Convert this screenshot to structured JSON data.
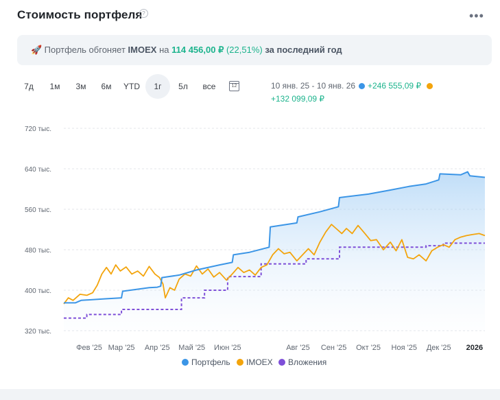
{
  "title": "Стоимость портфеля",
  "help_icon": "?",
  "more_icon": "•••",
  "banner": {
    "emoji": "🚀",
    "text1": "Портфель обгоняет",
    "index": "IMOEX",
    "text2": "на",
    "amount": "114 456,00 ₽",
    "percent": "(22,51%)",
    "text3": "за последний год"
  },
  "ranges": [
    "7д",
    "1м",
    "3м",
    "6м",
    "YTD",
    "1г",
    "5л",
    "все"
  ],
  "active_range": "1г",
  "calendar_icon": "12",
  "period": "10 янв. 25 - 10 янв. 26",
  "portfolio_change": "+246 555,09 ₽",
  "imoex_change": "+132 099,09 ₽",
  "colors": {
    "portfolio": "#3b95e6",
    "imoex": "#f3a40c",
    "invest": "#7e4fd8",
    "accent_green": "#1bb38c"
  },
  "chart_data": {
    "type": "line",
    "y_ticks": [
      "320 тыс.",
      "400 тыс.",
      "480 тыс.",
      "560 тыс.",
      "640 тыс.",
      "720 тыс."
    ],
    "y_tick_values": [
      320000,
      400000,
      480000,
      560000,
      640000,
      720000
    ],
    "ylim": [
      320000,
      720000
    ],
    "x_ticks": [
      "Фев '25",
      "Мар '25",
      "Апр '25",
      "Май '25",
      "Июн '25",
      "Авг '25",
      "Сен '25",
      "Окт '25",
      "Ноя '25",
      "Дек '25",
      "2026"
    ],
    "x_tick_dates": [
      "2025-02-01",
      "2025-03-01",
      "2025-04-01",
      "2025-05-01",
      "2025-06-01",
      "2025-08-01",
      "2025-09-01",
      "2025-10-01",
      "2025-11-01",
      "2025-12-01",
      "2026-01-01"
    ],
    "x_range": [
      "2025-01-10",
      "2026-01-10"
    ],
    "grid": true,
    "legend_position": "bottom",
    "series": [
      {
        "name": "Портфель",
        "type": "area",
        "points": [
          [
            "2025-01-10",
            375000
          ],
          [
            "2025-01-20",
            375000
          ],
          [
            "2025-01-25",
            380000
          ],
          [
            "2025-02-15",
            383000
          ],
          [
            "2025-03-01",
            385000
          ],
          [
            "2025-03-02",
            398000
          ],
          [
            "2025-03-25",
            405000
          ],
          [
            "2025-04-01",
            406000
          ],
          [
            "2025-04-04",
            408000
          ],
          [
            "2025-04-05",
            425000
          ],
          [
            "2025-04-20",
            430000
          ],
          [
            "2025-05-05",
            440000
          ],
          [
            "2025-05-25",
            450000
          ],
          [
            "2025-06-05",
            455000
          ],
          [
            "2025-06-06",
            470000
          ],
          [
            "2025-06-20",
            475000
          ],
          [
            "2025-07-07",
            485000
          ],
          [
            "2025-07-08",
            525000
          ],
          [
            "2025-07-31",
            533000
          ],
          [
            "2025-08-01",
            545000
          ],
          [
            "2025-08-20",
            555000
          ],
          [
            "2025-09-05",
            565000
          ],
          [
            "2025-09-06",
            583000
          ],
          [
            "2025-10-01",
            590000
          ],
          [
            "2025-10-20",
            598000
          ],
          [
            "2025-11-05",
            605000
          ],
          [
            "2025-11-20",
            610000
          ],
          [
            "2025-12-01",
            618000
          ],
          [
            "2025-12-02",
            630000
          ],
          [
            "2025-12-20",
            628000
          ],
          [
            "2025-12-26",
            634000
          ],
          [
            "2025-12-28",
            626000
          ],
          [
            "2026-01-10",
            623000
          ]
        ]
      },
      {
        "name": "IMOEX",
        "type": "line",
        "points": [
          [
            "2025-01-10",
            373000
          ],
          [
            "2025-01-14",
            385000
          ],
          [
            "2025-01-18",
            380000
          ],
          [
            "2025-01-24",
            392000
          ],
          [
            "2025-01-30",
            390000
          ],
          [
            "2025-02-04",
            395000
          ],
          [
            "2025-02-08",
            410000
          ],
          [
            "2025-02-12",
            432000
          ],
          [
            "2025-02-16",
            445000
          ],
          [
            "2025-02-20",
            432000
          ],
          [
            "2025-02-24",
            450000
          ],
          [
            "2025-02-28",
            438000
          ],
          [
            "2025-03-05",
            446000
          ],
          [
            "2025-03-10",
            432000
          ],
          [
            "2025-03-15",
            438000
          ],
          [
            "2025-03-20",
            428000
          ],
          [
            "2025-03-25",
            447000
          ],
          [
            "2025-03-30",
            432000
          ],
          [
            "2025-04-03",
            425000
          ],
          [
            "2025-04-06",
            412000
          ],
          [
            "2025-04-08",
            385000
          ],
          [
            "2025-04-12",
            405000
          ],
          [
            "2025-04-16",
            400000
          ],
          [
            "2025-04-20",
            422000
          ],
          [
            "2025-04-25",
            432000
          ],
          [
            "2025-04-30",
            428000
          ],
          [
            "2025-05-05",
            448000
          ],
          [
            "2025-05-10",
            432000
          ],
          [
            "2025-05-15",
            442000
          ],
          [
            "2025-05-20",
            426000
          ],
          [
            "2025-05-25",
            435000
          ],
          [
            "2025-05-31",
            420000
          ],
          [
            "2025-06-05",
            432000
          ],
          [
            "2025-06-10",
            445000
          ],
          [
            "2025-06-15",
            435000
          ],
          [
            "2025-06-20",
            440000
          ],
          [
            "2025-06-25",
            430000
          ],
          [
            "2025-06-30",
            445000
          ],
          [
            "2025-07-05",
            450000
          ],
          [
            "2025-07-10",
            470000
          ],
          [
            "2025-07-15",
            482000
          ],
          [
            "2025-07-20",
            472000
          ],
          [
            "2025-07-25",
            475000
          ],
          [
            "2025-07-31",
            458000
          ],
          [
            "2025-08-05",
            470000
          ],
          [
            "2025-08-10",
            482000
          ],
          [
            "2025-08-15",
            470000
          ],
          [
            "2025-08-20",
            495000
          ],
          [
            "2025-08-25",
            515000
          ],
          [
            "2025-08-30",
            530000
          ],
          [
            "2025-09-03",
            522000
          ],
          [
            "2025-09-08",
            512000
          ],
          [
            "2025-09-12",
            522000
          ],
          [
            "2025-09-17",
            512000
          ],
          [
            "2025-09-22",
            528000
          ],
          [
            "2025-09-28",
            512000
          ],
          [
            "2025-10-03",
            498000
          ],
          [
            "2025-10-08",
            500000
          ],
          [
            "2025-10-14",
            480000
          ],
          [
            "2025-10-20",
            495000
          ],
          [
            "2025-10-25",
            478000
          ],
          [
            "2025-10-30",
            500000
          ],
          [
            "2025-11-04",
            465000
          ],
          [
            "2025-11-09",
            462000
          ],
          [
            "2025-11-14",
            470000
          ],
          [
            "2025-11-20",
            458000
          ],
          [
            "2025-11-25",
            478000
          ],
          [
            "2025-11-30",
            485000
          ],
          [
            "2025-12-05",
            490000
          ],
          [
            "2025-12-10",
            485000
          ],
          [
            "2025-12-15",
            500000
          ],
          [
            "2025-12-20",
            505000
          ],
          [
            "2025-12-25",
            508000
          ],
          [
            "2025-12-30",
            510000
          ],
          [
            "2026-01-05",
            512000
          ],
          [
            "2026-01-10",
            508000
          ]
        ]
      },
      {
        "name": "Вложения",
        "type": "step",
        "dashed": true,
        "points": [
          [
            "2025-01-10",
            345000
          ],
          [
            "2025-01-30",
            352000
          ],
          [
            "2025-03-01",
            362000
          ],
          [
            "2025-04-22",
            385000
          ],
          [
            "2025-05-12",
            400000
          ],
          [
            "2025-06-01",
            427000
          ],
          [
            "2025-06-30",
            452000
          ],
          [
            "2025-08-08",
            462000
          ],
          [
            "2025-09-06",
            485000
          ],
          [
            "2025-11-20",
            488000
          ],
          [
            "2025-12-05",
            493000
          ],
          [
            "2026-01-10",
            493000
          ]
        ]
      }
    ]
  },
  "legend": {
    "portfolio": "Портфель",
    "imoex": "IMOEX",
    "invest": "Вложения"
  }
}
